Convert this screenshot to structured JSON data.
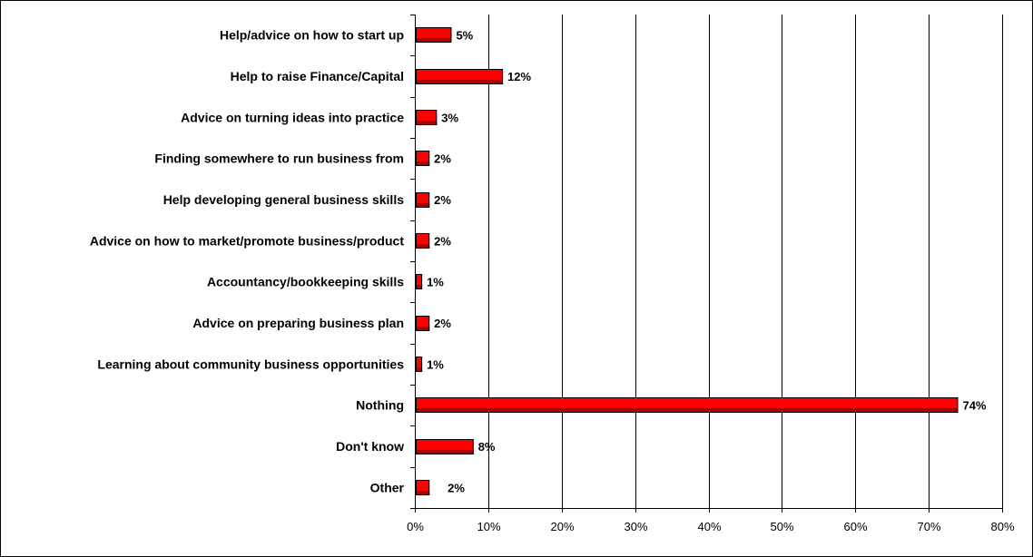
{
  "chart_data": {
    "type": "bar",
    "orientation": "horizontal",
    "categories": [
      "Help/advice on how to start up",
      "Help to raise Finance/Capital",
      "Advice on turning ideas into practice",
      "Finding somewhere to run business from",
      "Help developing general business skills",
      "Advice on how to market/promote business/product",
      "Accountancy/bookkeeping skills",
      "Advice on preparing business plan",
      "Learning about community business opportunities",
      "Nothing",
      "Don't know",
      "Other"
    ],
    "values": [
      5,
      12,
      3,
      2,
      2,
      2,
      1,
      2,
      1,
      74,
      8,
      2
    ],
    "value_labels": [
      "5%",
      "12%",
      "3%",
      "2%",
      "2%",
      "2%",
      "1%",
      "2%",
      "1%",
      "74%",
      "8%",
      "2%"
    ],
    "xlim": [
      0,
      80
    ],
    "xticks": [
      0,
      10,
      20,
      30,
      40,
      50,
      60,
      70,
      80
    ],
    "xtick_labels": [
      "0%",
      "10%",
      "20%",
      "30%",
      "40%",
      "50%",
      "60%",
      "70%",
      "80%"
    ],
    "title": "",
    "xlabel": "",
    "ylabel": "",
    "grid": "vertical",
    "legend": "none",
    "bar_color": "#ff0000",
    "bar_shadow_color": "#b00000",
    "bar_outline_color": "#000000"
  }
}
